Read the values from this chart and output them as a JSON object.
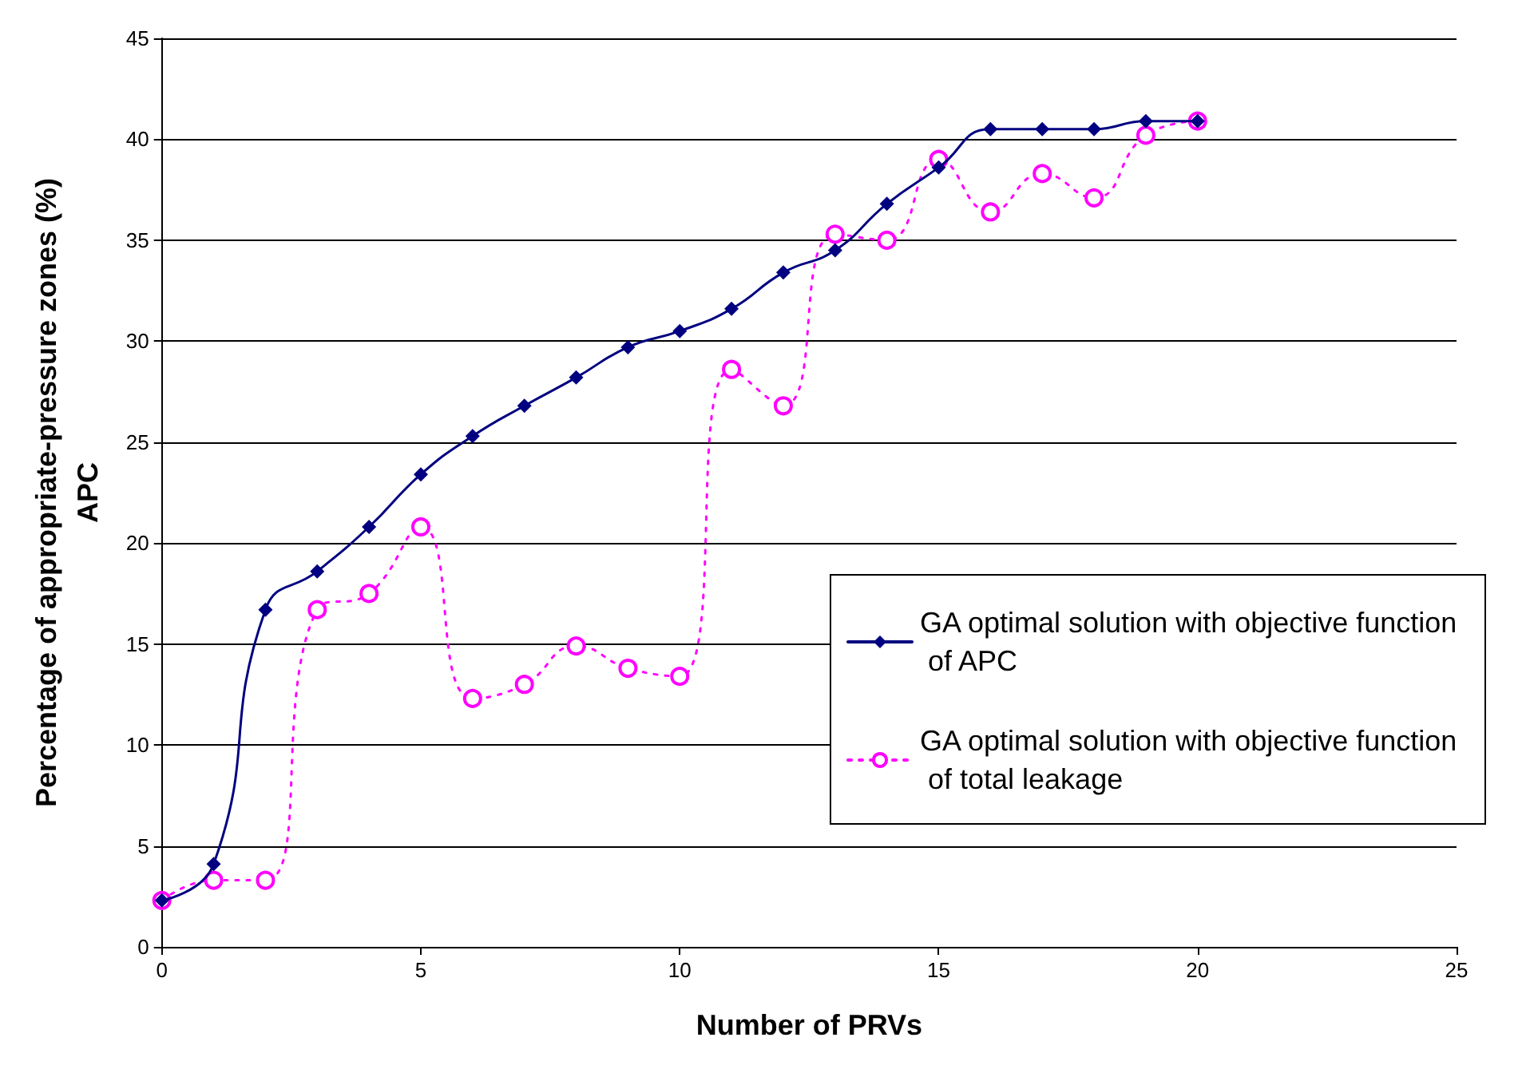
{
  "chart_data": {
    "type": "line",
    "xlabel": "Number of PRVs",
    "ylabel": "Percentage of appropriate-pressure zones (%)\nAPC",
    "x": [
      0,
      1,
      2,
      3,
      4,
      5,
      6,
      7,
      8,
      9,
      10,
      11,
      12,
      13,
      14,
      15,
      16,
      17,
      18,
      19,
      20
    ],
    "xlim": [
      0,
      25
    ],
    "xticks": [
      0,
      5,
      10,
      15,
      20,
      25
    ],
    "ylim": [
      0,
      45
    ],
    "yticks": [
      0,
      5,
      10,
      15,
      20,
      25,
      30,
      35,
      40,
      45
    ],
    "grid": "y",
    "legend": "right",
    "series": [
      {
        "name": "GA optimal solution with objective function of APC",
        "color": "#000080",
        "marker": "diamond",
        "line_style": "solid",
        "values": [
          2.3,
          4.1,
          16.7,
          18.6,
          20.8,
          23.4,
          25.3,
          26.8,
          28.2,
          29.7,
          30.5,
          31.6,
          33.4,
          34.5,
          36.8,
          38.6,
          40.5,
          40.5,
          40.5,
          40.9,
          40.9
        ]
      },
      {
        "name": "GA optimal solution with objective function of total leakage",
        "color": "#ff00ff",
        "marker": "circle",
        "line_style": "dotted",
        "values": [
          2.3,
          3.3,
          3.3,
          16.7,
          17.5,
          20.8,
          12.3,
          13.0,
          14.9,
          13.8,
          13.4,
          28.6,
          26.8,
          35.3,
          35.0,
          39.0,
          36.4,
          38.3,
          37.1,
          40.2,
          40.9
        ]
      }
    ]
  }
}
